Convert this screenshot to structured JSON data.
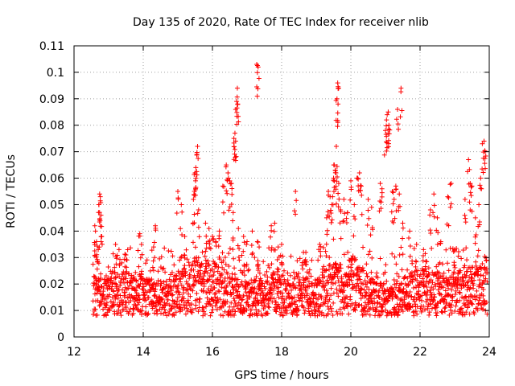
{
  "chart_data": {
    "type": "scatter",
    "title": "Day 135 of 2020, Rate Of TEC Index for receiver nlib",
    "xlabel": "GPS time / hours",
    "ylabel": "ROTI / TECUs",
    "xlim": [
      12,
      24
    ],
    "ylim": [
      0,
      0.11
    ],
    "xticks": [
      "12",
      "14",
      "16",
      "18",
      "20",
      "22",
      "24"
    ],
    "yticks": [
      "0",
      "0.01",
      "0.02",
      "0.03",
      "0.04",
      "0.05",
      "0.06",
      "0.07",
      "0.08",
      "0.09",
      "0.1",
      "0.11"
    ],
    "grid": true,
    "marker": "+",
    "color": "#ff0000",
    "series": [
      {
        "name": "ROTI",
        "x_range": [
          12.55,
          23.95
        ],
        "baseline_band": [
          0.008,
          0.025
        ],
        "points": [
          [
            12.6,
            0.042
          ],
          [
            12.62,
            0.04
          ],
          [
            12.65,
            0.036
          ],
          [
            12.7,
            0.033
          ],
          [
            12.72,
            0.05
          ],
          [
            12.74,
            0.054
          ],
          [
            12.76,
            0.053
          ],
          [
            12.78,
            0.046
          ],
          [
            12.8,
            0.038
          ],
          [
            13.2,
            0.035
          ],
          [
            13.3,
            0.033
          ],
          [
            13.5,
            0.031
          ],
          [
            13.9,
            0.039
          ],
          [
            13.95,
            0.035
          ],
          [
            14.3,
            0.034
          ],
          [
            14.35,
            0.042
          ],
          [
            15.0,
            0.055
          ],
          [
            15.1,
            0.05
          ],
          [
            15.2,
            0.038
          ],
          [
            15.45,
            0.052
          ],
          [
            15.48,
            0.055
          ],
          [
            15.5,
            0.062
          ],
          [
            15.52,
            0.064
          ],
          [
            15.55,
            0.069
          ],
          [
            15.57,
            0.072
          ],
          [
            15.6,
            0.048
          ],
          [
            15.8,
            0.043
          ],
          [
            15.9,
            0.041
          ],
          [
            16.0,
            0.038
          ],
          [
            16.1,
            0.036
          ],
          [
            16.2,
            0.04
          ],
          [
            16.3,
            0.057
          ],
          [
            16.4,
            0.065
          ],
          [
            16.45,
            0.062
          ],
          [
            16.5,
            0.059
          ],
          [
            16.55,
            0.058
          ],
          [
            16.6,
            0.047
          ],
          [
            16.62,
            0.075
          ],
          [
            16.65,
            0.077
          ],
          [
            16.67,
            0.074
          ],
          [
            16.7,
            0.089
          ],
          [
            16.72,
            0.094
          ],
          [
            16.73,
            0.088
          ],
          [
            16.75,
            0.041
          ],
          [
            16.9,
            0.038
          ],
          [
            17.0,
            0.036
          ],
          [
            17.15,
            0.04
          ],
          [
            17.3,
            0.036
          ],
          [
            17.35,
            0.034
          ],
          [
            17.28,
            0.103
          ],
          [
            17.32,
            0.102
          ],
          [
            17.7,
            0.042
          ],
          [
            17.8,
            0.043
          ],
          [
            17.9,
            0.034
          ],
          [
            18.0,
            0.035
          ],
          [
            18.4,
            0.055
          ],
          [
            18.7,
            0.032
          ],
          [
            19.1,
            0.035
          ],
          [
            19.3,
            0.045
          ],
          [
            19.35,
            0.055
          ],
          [
            19.4,
            0.053
          ],
          [
            19.45,
            0.05
          ],
          [
            19.5,
            0.06
          ],
          [
            19.52,
            0.065
          ],
          [
            19.55,
            0.063
          ],
          [
            19.57,
            0.062
          ],
          [
            19.58,
            0.072
          ],
          [
            19.6,
            0.09
          ],
          [
            19.62,
            0.096
          ],
          [
            19.63,
            0.088
          ],
          [
            19.65,
            0.058
          ],
          [
            19.7,
            0.048
          ],
          [
            19.8,
            0.052
          ],
          [
            19.9,
            0.047
          ],
          [
            20.0,
            0.059
          ],
          [
            20.1,
            0.05
          ],
          [
            20.2,
            0.06
          ],
          [
            20.25,
            0.062
          ],
          [
            20.3,
            0.057
          ],
          [
            20.5,
            0.052
          ],
          [
            20.6,
            0.049
          ],
          [
            20.85,
            0.058
          ],
          [
            20.9,
            0.056
          ],
          [
            21.0,
            0.078
          ],
          [
            21.03,
            0.082
          ],
          [
            21.05,
            0.084
          ],
          [
            21.08,
            0.085
          ],
          [
            21.1,
            0.08
          ],
          [
            21.2,
            0.055
          ],
          [
            21.25,
            0.052
          ],
          [
            21.3,
            0.057
          ],
          [
            21.35,
            0.086
          ],
          [
            21.4,
            0.054
          ],
          [
            21.45,
            0.094
          ],
          [
            21.5,
            0.043
          ],
          [
            21.7,
            0.04
          ],
          [
            21.9,
            0.035
          ],
          [
            22.1,
            0.033
          ],
          [
            22.3,
            0.048
          ],
          [
            22.4,
            0.054
          ],
          [
            22.5,
            0.045
          ],
          [
            22.6,
            0.036
          ],
          [
            22.8,
            0.053
          ],
          [
            22.9,
            0.058
          ],
          [
            23.0,
            0.033
          ],
          [
            23.3,
            0.052
          ],
          [
            23.4,
            0.067
          ],
          [
            23.45,
            0.058
          ],
          [
            23.5,
            0.057
          ],
          [
            23.6,
            0.045
          ],
          [
            23.7,
            0.05
          ],
          [
            23.75,
            0.06
          ],
          [
            23.8,
            0.073
          ],
          [
            23.85,
            0.074
          ],
          [
            23.88,
            0.07
          ]
        ]
      }
    ]
  }
}
